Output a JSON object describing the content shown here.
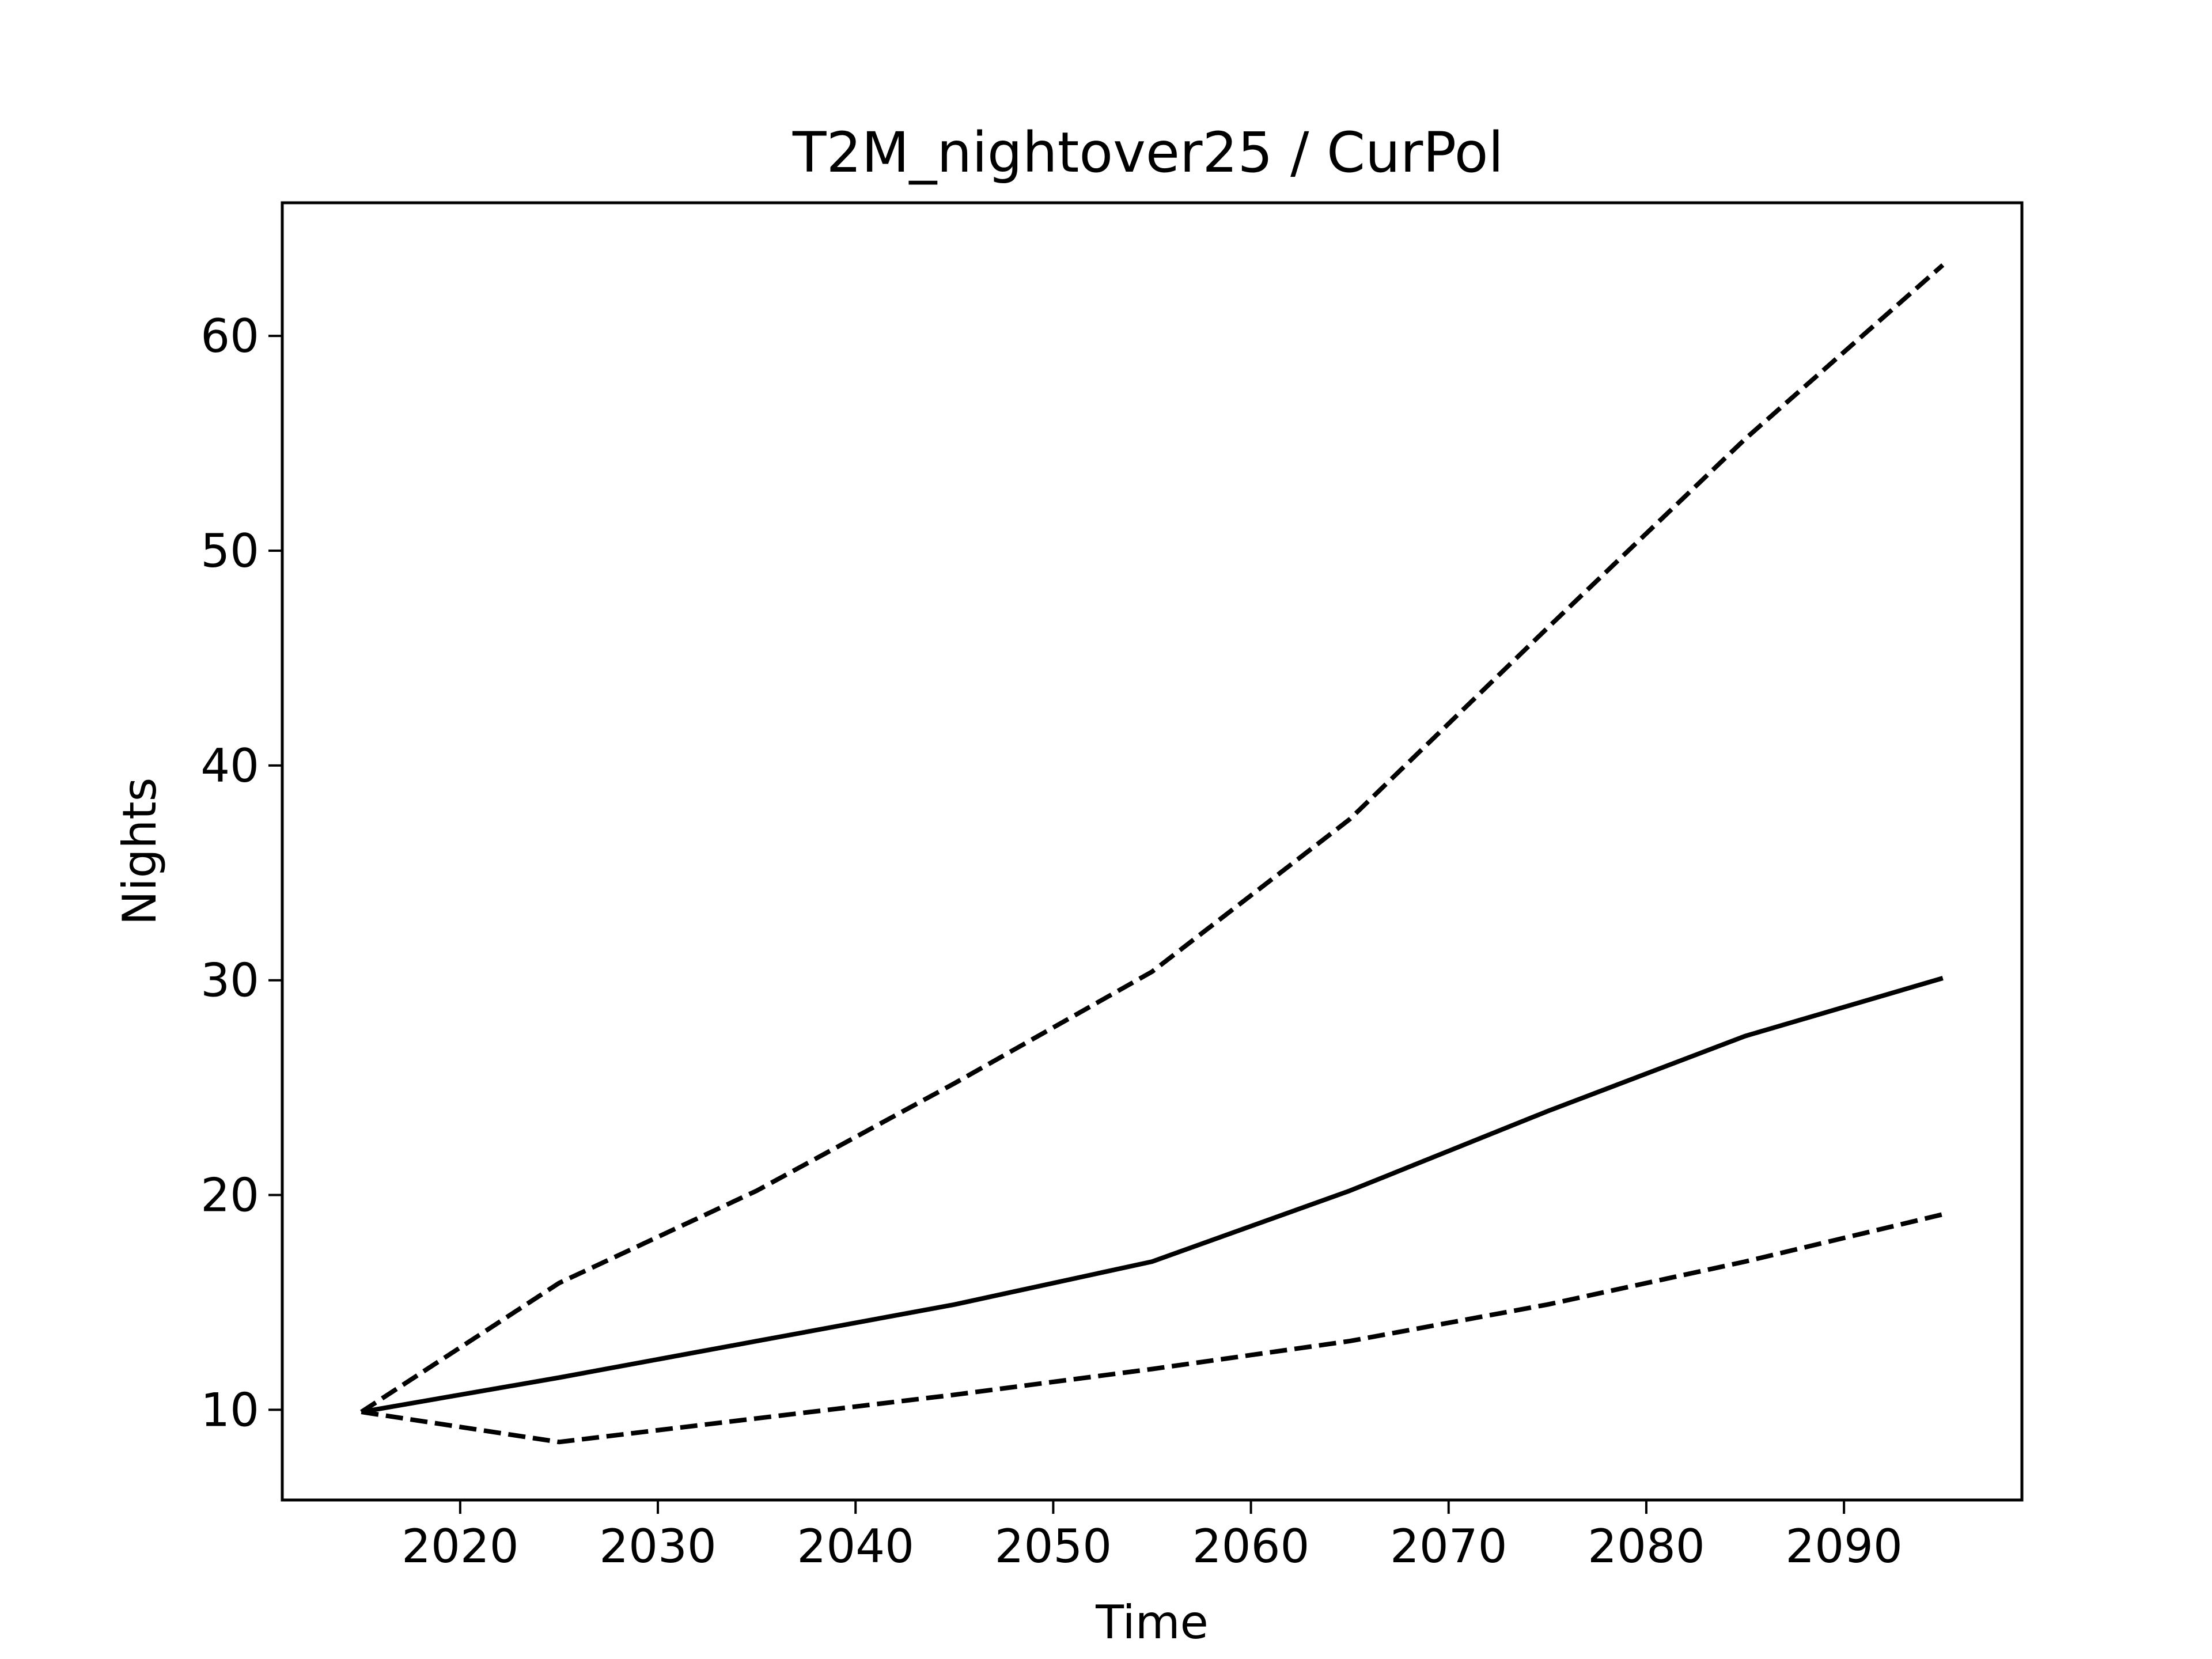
{
  "chart_data": {
    "type": "line",
    "title": "T2M_nightover25 / CurPol",
    "xlabel": "Time",
    "ylabel": "Nights",
    "xlim": [
      2011,
      2099
    ],
    "ylim": [
      5.8,
      66.2
    ],
    "x_ticks": [
      2020,
      2030,
      2040,
      2050,
      2060,
      2070,
      2080,
      2090
    ],
    "y_ticks": [
      10,
      20,
      30,
      40,
      50,
      60
    ],
    "grid": false,
    "legend": "none",
    "x": [
      2015,
      2025,
      2035,
      2045,
      2055,
      2065,
      2075,
      2085,
      2095
    ],
    "series": [
      {
        "style": "solid",
        "color": "#000000",
        "values": [
          9.9,
          11.5,
          13.2,
          14.9,
          16.9,
          20.2,
          23.9,
          27.4,
          30.1
        ]
      },
      {
        "style": "dashed",
        "color": "#000000",
        "values": [
          9.9,
          15.9,
          20.2,
          25.2,
          30.4,
          37.5,
          46.4,
          55.2,
          63.3
        ]
      },
      {
        "style": "dashed",
        "color": "#000000",
        "values": [
          9.9,
          8.5,
          9.6,
          10.7,
          11.9,
          13.2,
          14.9,
          16.9,
          19.1
        ]
      }
    ]
  }
}
